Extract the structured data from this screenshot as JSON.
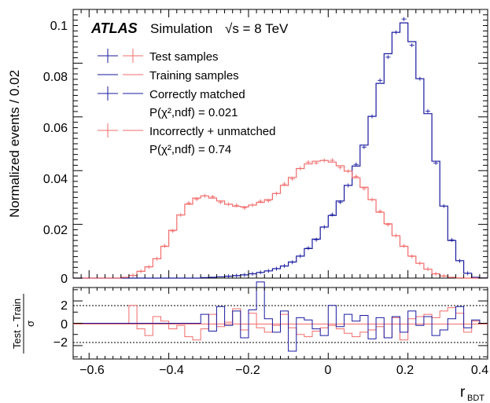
{
  "colors": {
    "blue": "#1a1aa0",
    "red": "#f26b6b",
    "axis": "#000000"
  },
  "top_panel": {
    "ylabel": "Normalized events / 0.02",
    "y_ticks": [
      "0",
      "0.02",
      "0.04",
      "0.06",
      "0.08",
      "0.1"
    ],
    "label_atlas": "ATLAS",
    "label_sim": "Simulation",
    "label_energy": "√s = 8 TeV",
    "legend": {
      "test": "Test samples",
      "train": "Training samples",
      "correct": "Correctly matched",
      "p_correct": "P(χ²,ndf) = 0.021",
      "incorrect": "Incorrectly + unmatched",
      "p_incorrect": "P(χ²,ndf) = 0.74"
    }
  },
  "ratio_panel": {
    "ylabel_num": "Test - Train",
    "ylabel_den": "σ",
    "y_ticks": [
      "2",
      "0",
      "−2"
    ]
  },
  "x_axis": {
    "label": "r",
    "label_sub": "BDT",
    "ticks": [
      "−0.6",
      "−0.4",
      "−0.2",
      "0",
      "0.2",
      "0.4"
    ]
  },
  "chart_data": {
    "type": "histogram",
    "x_edges_start": -0.64,
    "bin_width": 0.02,
    "xlim": [
      -0.64,
      0.4
    ],
    "ylim": [
      0,
      0.1
    ],
    "ratio_ylim": [
      -3.2,
      3.2
    ],
    "series": [
      {
        "name": "Correctly matched",
        "color": "#1a1aa0",
        "values": [
          0,
          0,
          0,
          0,
          0,
          0,
          0,
          0,
          0,
          0,
          0,
          0,
          0,
          0,
          0,
          0,
          0.0002,
          0.0003,
          0.0005,
          0.0007,
          0.0009,
          0.0012,
          0.0016,
          0.0021,
          0.0027,
          0.0035,
          0.0045,
          0.006,
          0.0082,
          0.011,
          0.0145,
          0.019,
          0.0233,
          0.0287,
          0.0345,
          0.0417,
          0.0495,
          0.0602,
          0.0725,
          0.0835,
          0.0915,
          0.095,
          0.088,
          0.0742,
          0.0612,
          0.0435,
          0.0268,
          0.014,
          0.0065,
          0.0018,
          0.0003,
          0.0001
        ]
      },
      {
        "name": "Incorrectly + unmatched",
        "color": "#f26b6b",
        "values": [
          0,
          0,
          0,
          0,
          0,
          0,
          0.0003,
          0.001,
          0.0025,
          0.0042,
          0.0072,
          0.0118,
          0.0178,
          0.0235,
          0.0275,
          0.0298,
          0.0306,
          0.0298,
          0.0287,
          0.0275,
          0.0267,
          0.0265,
          0.0272,
          0.0282,
          0.0292,
          0.0315,
          0.0345,
          0.0375,
          0.0408,
          0.0425,
          0.0435,
          0.0438,
          0.0432,
          0.0418,
          0.0398,
          0.0373,
          0.0338,
          0.0292,
          0.0245,
          0.0202,
          0.0158,
          0.0118,
          0.0082,
          0.0055,
          0.0033,
          0.0016,
          0.0008,
          0.0003,
          0.0001,
          0,
          0,
          0
        ]
      }
    ],
    "ratio_series": [
      {
        "name": "Correctly matched",
        "color": "#1a1aa0",
        "values": [
          0,
          0,
          0,
          0,
          0,
          0,
          0,
          0,
          0,
          0,
          0,
          0,
          0,
          0,
          0,
          0,
          0.8,
          -0.7,
          1.5,
          -0.2,
          1.1,
          -1.3,
          1.2,
          3.7,
          0.4,
          -0.8,
          1.1,
          -2.5,
          0.5,
          0.3,
          -0.5,
          -1.1,
          1.6,
          -0.3,
          0.8,
          0.2,
          0.7,
          -1.4,
          0.5,
          -1.3,
          0.6,
          -0.8,
          1.1,
          -0.2,
          0.6,
          -1.1,
          -0.6,
          0.4,
          1.5,
          -0.4,
          0.3,
          0
        ]
      },
      {
        "name": "Incorrectly + unmatched",
        "color": "#f26b6b",
        "values": [
          0,
          0,
          0,
          0,
          0,
          0,
          0,
          1.6,
          -0.5,
          -1.1,
          0.6,
          0.2,
          -0.5,
          -0.2,
          -1.2,
          -1.5,
          -0.5,
          0.8,
          -0.3,
          0.1,
          1.3,
          -0.6,
          0.9,
          -0.4,
          -0.8,
          -0.2,
          0.8,
          -0.4,
          -1.0,
          -1.2,
          -0.7,
          -0.4,
          -0.2,
          -0.5,
          -0.9,
          -1.2,
          -0.8,
          -0.6,
          -0.3,
          -1.3,
          0.5,
          -1.5,
          0.4,
          0.6,
          0.8,
          0.5,
          1.1,
          1.4,
          0.9,
          -0.8,
          0.2,
          0
        ]
      }
    ]
  }
}
